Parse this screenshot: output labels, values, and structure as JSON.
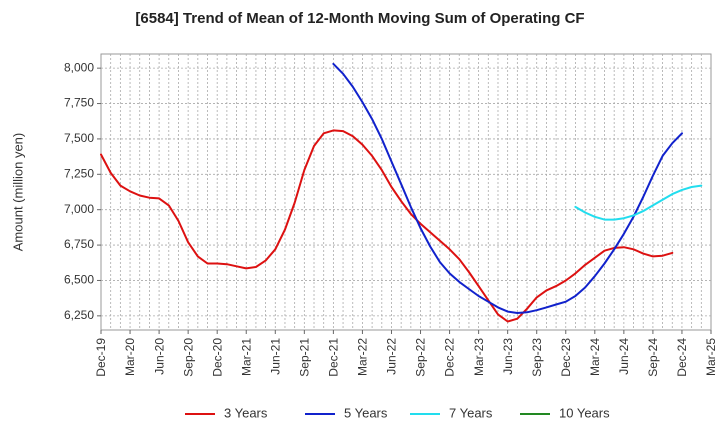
{
  "chart_data": {
    "type": "line",
    "title": "[6584]  Trend of Mean of 12-Month Moving Sum of Operating CF",
    "xlabel": "",
    "ylabel": "Amount (million yen)",
    "ylim": [
      6150,
      8100
    ],
    "yticks": [
      6250,
      6500,
      6750,
      7000,
      7250,
      7500,
      7750,
      8000
    ],
    "ytick_labels": [
      "6,250",
      "6,500",
      "6,750",
      "7,000",
      "7,250",
      "7,500",
      "7,750",
      "8,000"
    ],
    "x_tick_labels": [
      "Dec-19",
      "Mar-20",
      "Jun-20",
      "Sep-20",
      "Dec-20",
      "Mar-21",
      "Jun-21",
      "Sep-21",
      "Dec-21",
      "Mar-22",
      "Jun-22",
      "Sep-22",
      "Dec-22",
      "Mar-23",
      "Jun-23",
      "Sep-23",
      "Dec-23",
      "Mar-24",
      "Jun-24",
      "Sep-24",
      "Dec-24",
      "Mar-25"
    ],
    "x_range_months": [
      0,
      63
    ],
    "grid": true,
    "legend_position": "bottom",
    "series": [
      {
        "name": "3 Years",
        "color": "#dd1111",
        "start_month": 0,
        "values": [
          7390,
          7260,
          7170,
          7130,
          7100,
          7085,
          7080,
          7030,
          6920,
          6770,
          6670,
          6620,
          6620,
          6615,
          6600,
          6585,
          6595,
          6640,
          6720,
          6860,
          7050,
          7280,
          7450,
          7540,
          7560,
          7555,
          7520,
          7460,
          7380,
          7280,
          7160,
          7060,
          6970,
          6900,
          6840,
          6780,
          6720,
          6650,
          6560,
          6460,
          6360,
          6260,
          6210,
          6230,
          6300,
          6380,
          6430,
          6460,
          6500,
          6550,
          6610,
          6660,
          6710,
          6730,
          6735,
          6720,
          6690,
          6670,
          6675,
          6695
        ]
      },
      {
        "name": "5 Years",
        "color": "#1122cc",
        "start_month": 24,
        "values": [
          8030,
          7960,
          7870,
          7760,
          7640,
          7500,
          7340,
          7180,
          7020,
          6870,
          6740,
          6630,
          6550,
          6490,
          6440,
          6390,
          6350,
          6310,
          6280,
          6270,
          6275,
          6290,
          6310,
          6330,
          6350,
          6390,
          6450,
          6530,
          6620,
          6720,
          6830,
          6950,
          7090,
          7240,
          7380,
          7470,
          7540
        ]
      },
      {
        "name": "7 Years",
        "color": "#22ddee",
        "start_month": 49,
        "values": [
          7020,
          6980,
          6950,
          6930,
          6930,
          6940,
          6960,
          6990,
          7030,
          7070,
          7110,
          7140,
          7160,
          7170
        ]
      },
      {
        "name": "10 Years",
        "color": "#228822",
        "start_month": null,
        "values": []
      }
    ]
  }
}
